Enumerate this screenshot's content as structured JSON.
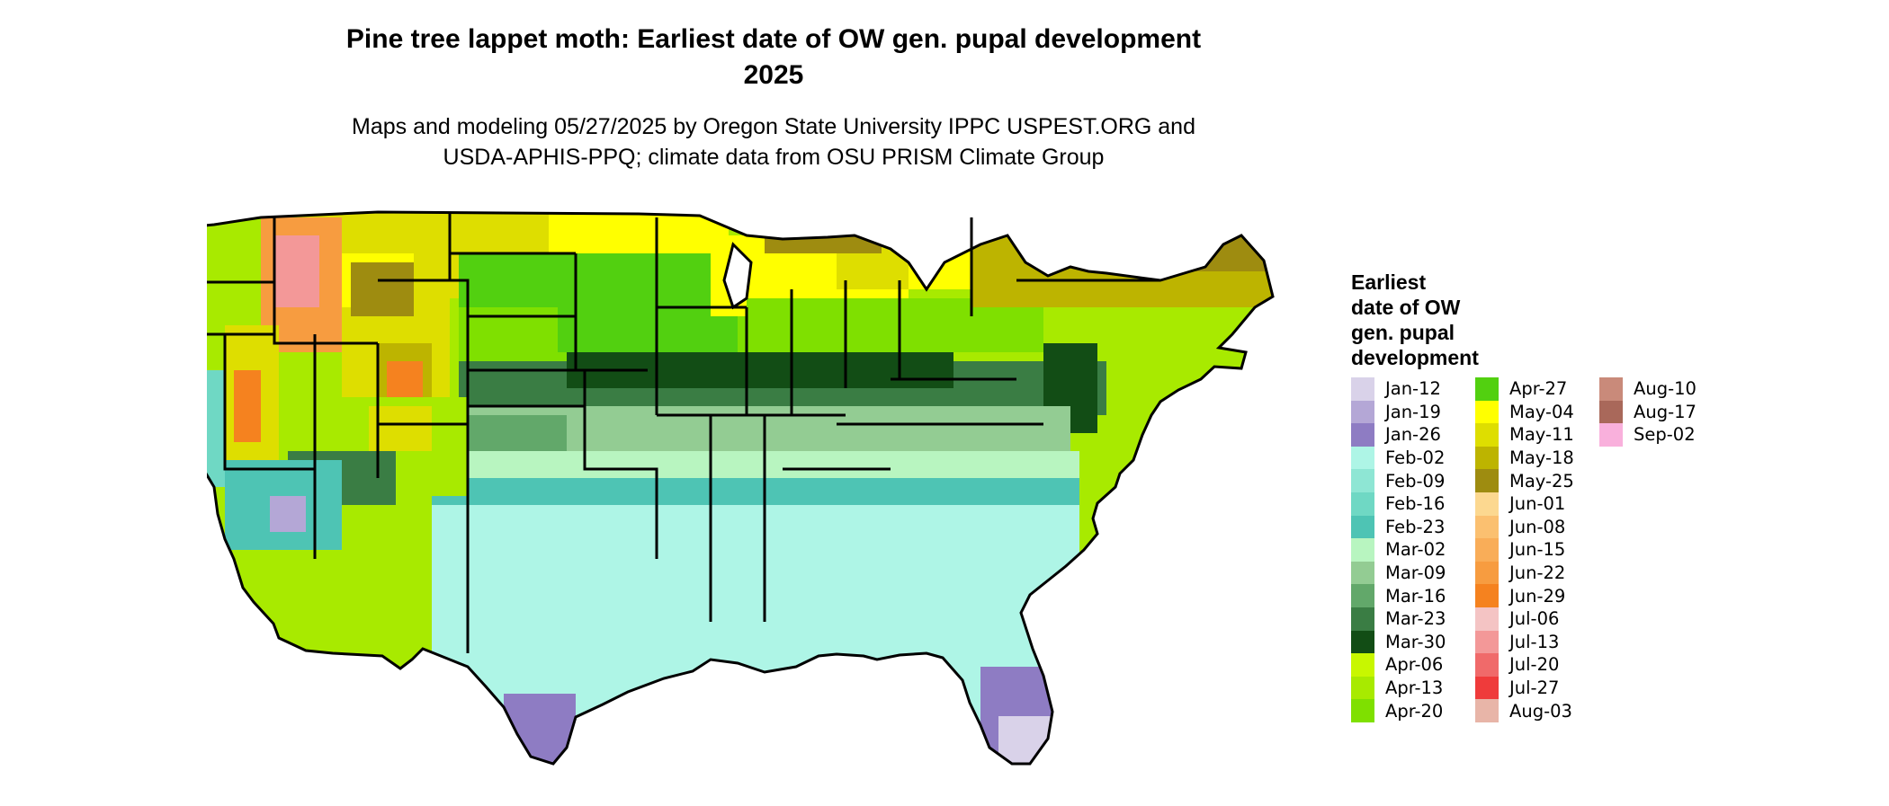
{
  "title_line1": "Pine tree lappet moth: Earliest date of OW gen. pupal development",
  "title_line2": "2025",
  "subtitle_line1": "Maps and modeling 05/27/2025 by Oregon State University IPPC USPEST.ORG and",
  "subtitle_line2": "USDA-APHIS-PPQ; climate data from OSU PRISM Climate Group",
  "legend": {
    "title_lines": [
      "Earliest",
      "date of OW",
      "gen. pupal",
      "development"
    ],
    "items": [
      {
        "label": "Jan-12",
        "color": "#d9d2e9"
      },
      {
        "label": "Jan-19",
        "color": "#b4a7d6"
      },
      {
        "label": "Jan-26",
        "color": "#8e7cc3"
      },
      {
        "label": "Feb-02",
        "color": "#aef5e6"
      },
      {
        "label": "Feb-09",
        "color": "#8ee6d4"
      },
      {
        "label": "Feb-16",
        "color": "#6fd8c4"
      },
      {
        "label": "Feb-23",
        "color": "#4ec4b4"
      },
      {
        "label": "Mar-02",
        "color": "#b8f5c0"
      },
      {
        "label": "Mar-09",
        "color": "#93cc93"
      },
      {
        "label": "Mar-16",
        "color": "#62a86a"
      },
      {
        "label": "Mar-23",
        "color": "#3a7d44"
      },
      {
        "label": "Mar-30",
        "color": "#124d15"
      },
      {
        "label": "Apr-06",
        "color": "#c8f700"
      },
      {
        "label": "Apr-13",
        "color": "#a8ea00"
      },
      {
        "label": "Apr-20",
        "color": "#7fe000"
      },
      {
        "label": "Apr-27",
        "color": "#52d010"
      },
      {
        "label": "May-04",
        "color": "#ffff00"
      },
      {
        "label": "May-11",
        "color": "#dede00"
      },
      {
        "label": "May-18",
        "color": "#bdb400"
      },
      {
        "label": "May-25",
        "color": "#9e8c10"
      },
      {
        "label": "Jun-01",
        "color": "#fcd890"
      },
      {
        "label": "Jun-08",
        "color": "#fbc070"
      },
      {
        "label": "Jun-15",
        "color": "#f9ad58"
      },
      {
        "label": "Jun-22",
        "color": "#f79c40"
      },
      {
        "label": "Jun-29",
        "color": "#f5821f"
      },
      {
        "label": "Jul-06",
        "color": "#f4c4c4"
      },
      {
        "label": "Jul-13",
        "color": "#f39898"
      },
      {
        "label": "Jul-20",
        "color": "#f06a6a"
      },
      {
        "label": "Jul-27",
        "color": "#ef3b3b"
      },
      {
        "label": "Aug-03",
        "color": "#e8b5a8"
      },
      {
        "label": "Aug-10",
        "color": "#c98a7a"
      },
      {
        "label": "Aug-17",
        "color": "#a9685a"
      },
      {
        "label": "Sep-02",
        "color": "#f9b0dc"
      }
    ]
  },
  "map": {
    "outline_color": "#000000",
    "palette": {
      "west_base": "#a8ea00",
      "west_high": "#dede00",
      "mountain_mid": "#9e8c10",
      "mountain_hot": "#f5821f",
      "mountain_top": "#f39898",
      "north_plains": "#dede00",
      "upper_midwest": "#ffff00",
      "plains": "#52d010",
      "central": "#7fe000",
      "mid_south": "#3a7d44",
      "dark_band": "#124d15",
      "south_mid": "#93cc93",
      "gulf_teal": "#4ec4b4",
      "gulf_light": "#aef5e6",
      "coast_purple": "#8e7cc3",
      "coast_light_purple": "#b4a7d6",
      "northeast": "#bdb400",
      "northeast_dark": "#9e8c10",
      "pacific_teal": "#6fd8c4"
    }
  }
}
